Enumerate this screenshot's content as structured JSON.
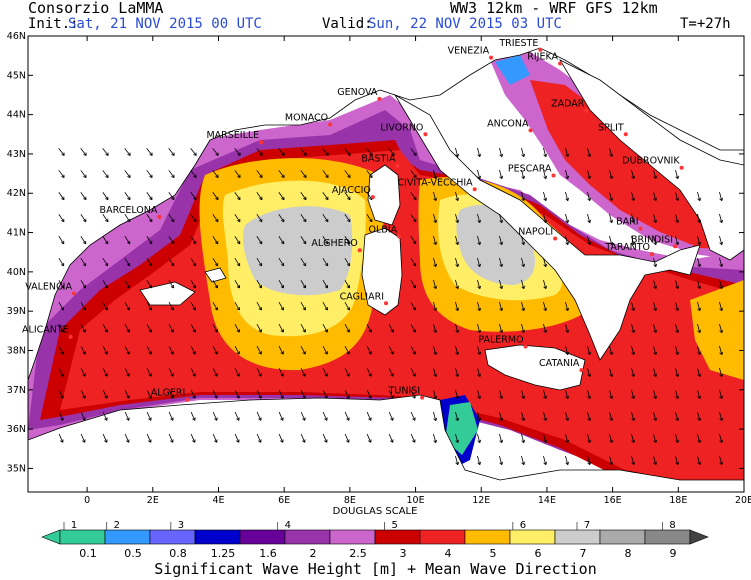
{
  "header": {
    "org": "Consorzio LaMMA",
    "model": "WW3 12km - WRF GFS 12km",
    "init_label": "Init.:",
    "init_value": "Sat, 21 NOV 2015  00 UTC",
    "valid_label": "Valid:",
    "valid_value": "Sun, 22 NOV 2015  03 UTC",
    "lead": "T=+27h"
  },
  "axes": {
    "lat_labels": [
      "46N",
      "45N",
      "44N",
      "43N",
      "42N",
      "41N",
      "40N",
      "39N",
      "38N",
      "37N",
      "36N",
      "35N"
    ],
    "lon_labels": [
      "0",
      "2E",
      "4E",
      "6E",
      "8E",
      "10E",
      "12E",
      "14E",
      "16E",
      "18E",
      "20E"
    ]
  },
  "cities": [
    {
      "name": "TRIESTE",
      "lon": 13.8,
      "lat": 45.65
    },
    {
      "name": "VENEZIA",
      "lon": 12.3,
      "lat": 45.45
    },
    {
      "name": "RIJEKA",
      "lon": 14.4,
      "lat": 45.3
    },
    {
      "name": "GENOVA",
      "lon": 8.9,
      "lat": 44.4
    },
    {
      "name": "MONACO",
      "lon": 7.4,
      "lat": 43.75
    },
    {
      "name": "MARSEILLE",
      "lon": 5.3,
      "lat": 43.3
    },
    {
      "name": "LIVORNO",
      "lon": 10.3,
      "lat": 43.5
    },
    {
      "name": "ANCONA",
      "lon": 13.5,
      "lat": 43.6
    },
    {
      "name": "ZADAR",
      "lon": 15.2,
      "lat": 44.1
    },
    {
      "name": "SPLIT",
      "lon": 16.4,
      "lat": 43.5
    },
    {
      "name": "DUBROVNIK",
      "lon": 18.1,
      "lat": 42.65
    },
    {
      "name": "PESCARA",
      "lon": 14.2,
      "lat": 42.45
    },
    {
      "name": "BASTIA",
      "lon": 9.45,
      "lat": 42.7
    },
    {
      "name": "AJACCIO",
      "lon": 8.7,
      "lat": 41.9
    },
    {
      "name": "CIVITA-VECCHIA",
      "lon": 11.8,
      "lat": 42.1
    },
    {
      "name": "BARCELONA",
      "lon": 2.2,
      "lat": 41.4
    },
    {
      "name": "OLBIA",
      "lon": 9.5,
      "lat": 40.9
    },
    {
      "name": "ALGHERO",
      "lon": 8.3,
      "lat": 40.55
    },
    {
      "name": "NAPOLI",
      "lon": 14.25,
      "lat": 40.85
    },
    {
      "name": "BARI",
      "lon": 16.85,
      "lat": 41.1
    },
    {
      "name": "BRINDISI",
      "lon": 17.9,
      "lat": 40.65
    },
    {
      "name": "TARANTO",
      "lon": 17.2,
      "lat": 40.45
    },
    {
      "name": "VALENCIA",
      "lon": -0.4,
      "lat": 39.45
    },
    {
      "name": "CAGLIARI",
      "lon": 9.1,
      "lat": 39.2
    },
    {
      "name": "ALICANTE",
      "lon": -0.5,
      "lat": 38.35
    },
    {
      "name": "PALERMO",
      "lon": 13.35,
      "lat": 38.1
    },
    {
      "name": "CATANIA",
      "lon": 15.05,
      "lat": 37.5
    },
    {
      "name": "ALGERI",
      "lon": 3.05,
      "lat": 36.75
    },
    {
      "name": "TUNISI",
      "lon": 10.2,
      "lat": 36.8
    }
  ],
  "legend": {
    "douglas_title": "DOUGLAS SCALE",
    "douglas": [
      "1",
      "2",
      "3",
      "4",
      "5",
      "6",
      "7",
      "8"
    ],
    "breaks": [
      "0.1",
      "0.5",
      "0.8",
      "1.25",
      "1.6",
      "2",
      "2.5",
      "3",
      "4",
      "5",
      "6",
      "7",
      "8",
      "9"
    ],
    "colors": [
      "#33cc99",
      "#3399ff",
      "#6666ff",
      "#0000cc",
      "#660099",
      "#9933aa",
      "#cc66cc",
      "#cc0000",
      "#ee2222",
      "#ffbb00",
      "#ffee66",
      "#cccccc",
      "#aaaaaa",
      "#888888"
    ],
    "title": "Significant Wave Height [m] + Mean Wave Direction"
  }
}
